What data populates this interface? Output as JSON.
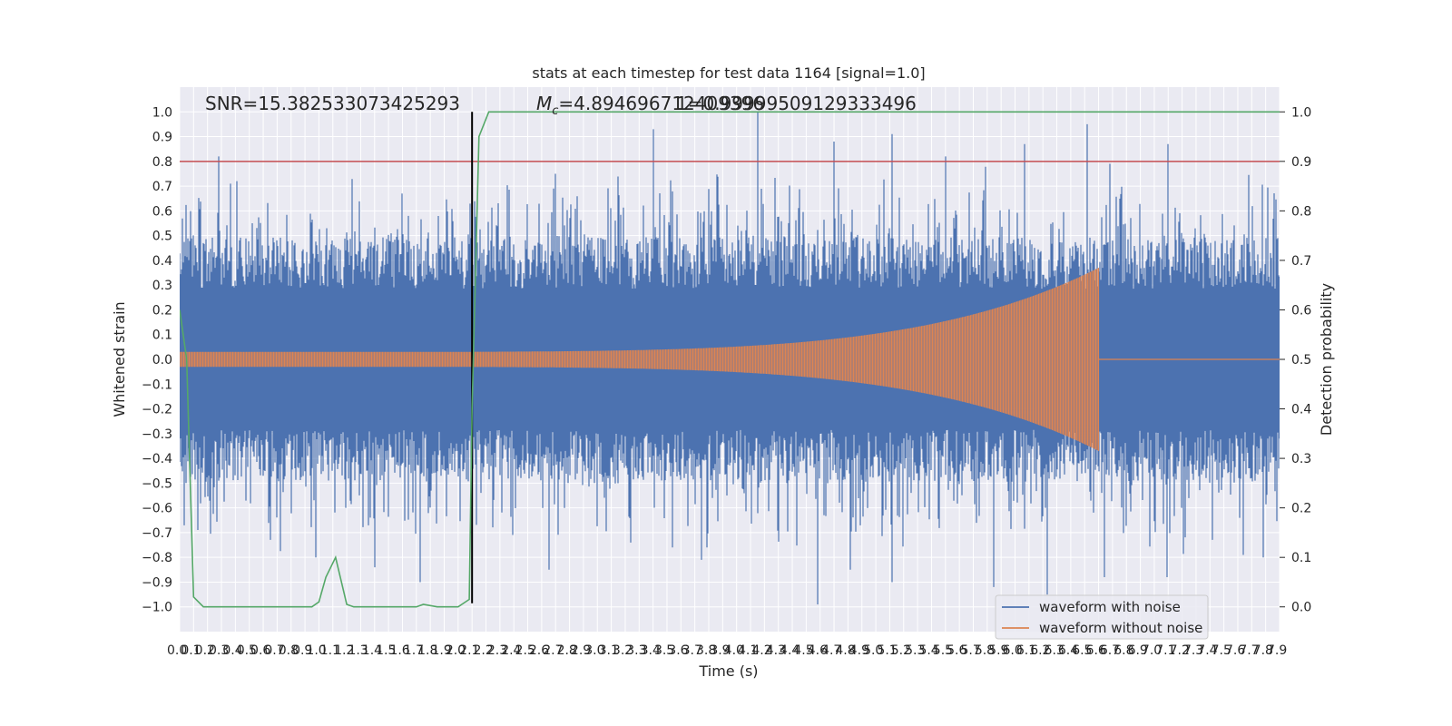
{
  "chart_data": {
    "type": "line",
    "title": "stats at each timestep for test data 1164 [signal=1.0]",
    "xlabel": "Time (s)",
    "ylabel": "Whitened strain",
    "y2label": "Detection probability",
    "xlim": [
      0.0,
      7.9
    ],
    "ylim": [
      -1.1,
      1.1
    ],
    "y2lim": [
      -0.05,
      1.05
    ],
    "xticks": [
      0.0,
      0.1,
      0.2,
      0.3,
      0.4,
      0.5,
      0.6,
      0.7,
      0.8,
      0.9,
      1.0,
      1.1,
      1.2,
      1.3,
      1.4,
      1.5,
      1.6,
      1.7,
      1.8,
      1.9,
      2.0,
      2.1,
      2.2,
      2.3,
      2.4,
      2.5,
      2.6,
      2.7,
      2.8,
      2.9,
      3.0,
      3.1,
      3.2,
      3.3,
      3.4,
      3.5,
      3.6,
      3.7,
      3.8,
      3.9,
      4.0,
      4.1,
      4.2,
      4.3,
      4.4,
      4.5,
      4.6,
      4.7,
      4.8,
      4.9,
      5.0,
      5.1,
      5.2,
      5.3,
      5.4,
      5.5,
      5.6,
      5.7,
      5.8,
      5.9,
      6.0,
      6.1,
      6.2,
      6.3,
      6.4,
      6.5,
      6.6,
      6.7,
      6.8,
      6.9,
      7.0,
      7.1,
      7.2,
      7.3,
      7.4,
      7.5,
      7.6,
      7.7,
      7.8,
      7.9
    ],
    "yticks": [
      "-1.0",
      "-0.9",
      "-0.8",
      "-0.7",
      "-0.6",
      "-0.5",
      "-0.4",
      "-0.3",
      "-0.2",
      "-0.1",
      "0.0",
      "0.1",
      "0.2",
      "0.3",
      "0.4",
      "0.5",
      "0.6",
      "0.7",
      "0.8",
      "0.9",
      "1.0"
    ],
    "y2ticks": [
      "0.0",
      "0.1",
      "0.2",
      "0.3",
      "0.4",
      "0.5",
      "0.6",
      "0.7",
      "0.8",
      "0.9",
      "1.0"
    ],
    "annotations": {
      "snr": "SNR=15.382533073425293",
      "mc_symbol": "M",
      "mc_sub": "c",
      "mc_value": "=4.894696712409396",
      "overlap": "1=0.99999509129333496"
    },
    "threshold": {
      "value": 0.9,
      "axis": "right"
    },
    "marker_time": 2.1,
    "series": [
      {
        "name": "waveform with noise",
        "color": "#4c72b0",
        "axis": "left",
        "kind": "noise",
        "typical_amplitude": 0.38,
        "peak_spikes": [
          {
            "t": 0.28,
            "v": 0.82
          },
          {
            "t": 0.41,
            "v": 0.7
          },
          {
            "t": 0.98,
            "v": -0.8
          },
          {
            "t": 1.4,
            "v": -0.84
          },
          {
            "t": 1.73,
            "v": -0.9
          },
          {
            "t": 2.65,
            "v": -0.85
          },
          {
            "t": 3.4,
            "v": 0.93
          },
          {
            "t": 3.54,
            "v": -0.76
          },
          {
            "t": 3.75,
            "v": -0.81
          },
          {
            "t": 4.15,
            "v": 1.0
          },
          {
            "t": 4.58,
            "v": -0.99
          },
          {
            "t": 4.7,
            "v": 0.88
          },
          {
            "t": 4.82,
            "v": -0.85
          },
          {
            "t": 5.12,
            "v": -0.9
          },
          {
            "t": 5.12,
            "v": 0.91
          },
          {
            "t": 5.5,
            "v": 0.82
          },
          {
            "t": 5.85,
            "v": -0.92
          },
          {
            "t": 6.07,
            "v": 0.87
          },
          {
            "t": 6.23,
            "v": -0.95
          },
          {
            "t": 6.52,
            "v": 0.95
          },
          {
            "t": 6.64,
            "v": -0.88
          },
          {
            "t": 6.68,
            "v": 0.79
          },
          {
            "t": 7.09,
            "v": -0.88
          },
          {
            "t": 7.1,
            "v": 0.87
          },
          {
            "t": 7.64,
            "v": -0.79
          },
          {
            "t": 7.78,
            "v": -0.8
          }
        ]
      },
      {
        "name": "waveform without noise",
        "color": "#dd8452",
        "axis": "left",
        "kind": "chirp",
        "start_time": 0.0,
        "merger_time": 6.6,
        "start_amplitude": 0.03,
        "peak_amplitude": 0.37
      },
      {
        "name": "detection probability",
        "color": "#55a868",
        "axis": "right",
        "x": [
          0.0,
          0.05,
          0.1,
          0.17,
          0.25,
          0.5,
          0.75,
          0.9,
          0.95,
          1.0,
          1.05,
          1.12,
          1.2,
          1.25,
          1.5,
          1.7,
          1.75,
          1.85,
          2.0,
          2.08,
          2.1,
          2.15,
          2.22,
          3.0,
          5.0,
          7.9
        ],
        "y": [
          0.6,
          0.5,
          0.02,
          0.0,
          0.0,
          0.0,
          0.0,
          0.0,
          0.0,
          0.01,
          0.06,
          0.1,
          0.005,
          0.0,
          0.0,
          0.0,
          0.005,
          0.0,
          0.0,
          0.015,
          0.4,
          0.95,
          1.0,
          1.0,
          1.0,
          1.0
        ]
      }
    ],
    "legend": {
      "position": "lower-right",
      "entries": [
        "waveform with noise",
        "waveform without noise"
      ]
    },
    "colors": {
      "plot_background": "#eaeaf2",
      "grid": "#ffffff",
      "threshold": "#c44e52",
      "marker": "#000000"
    }
  }
}
